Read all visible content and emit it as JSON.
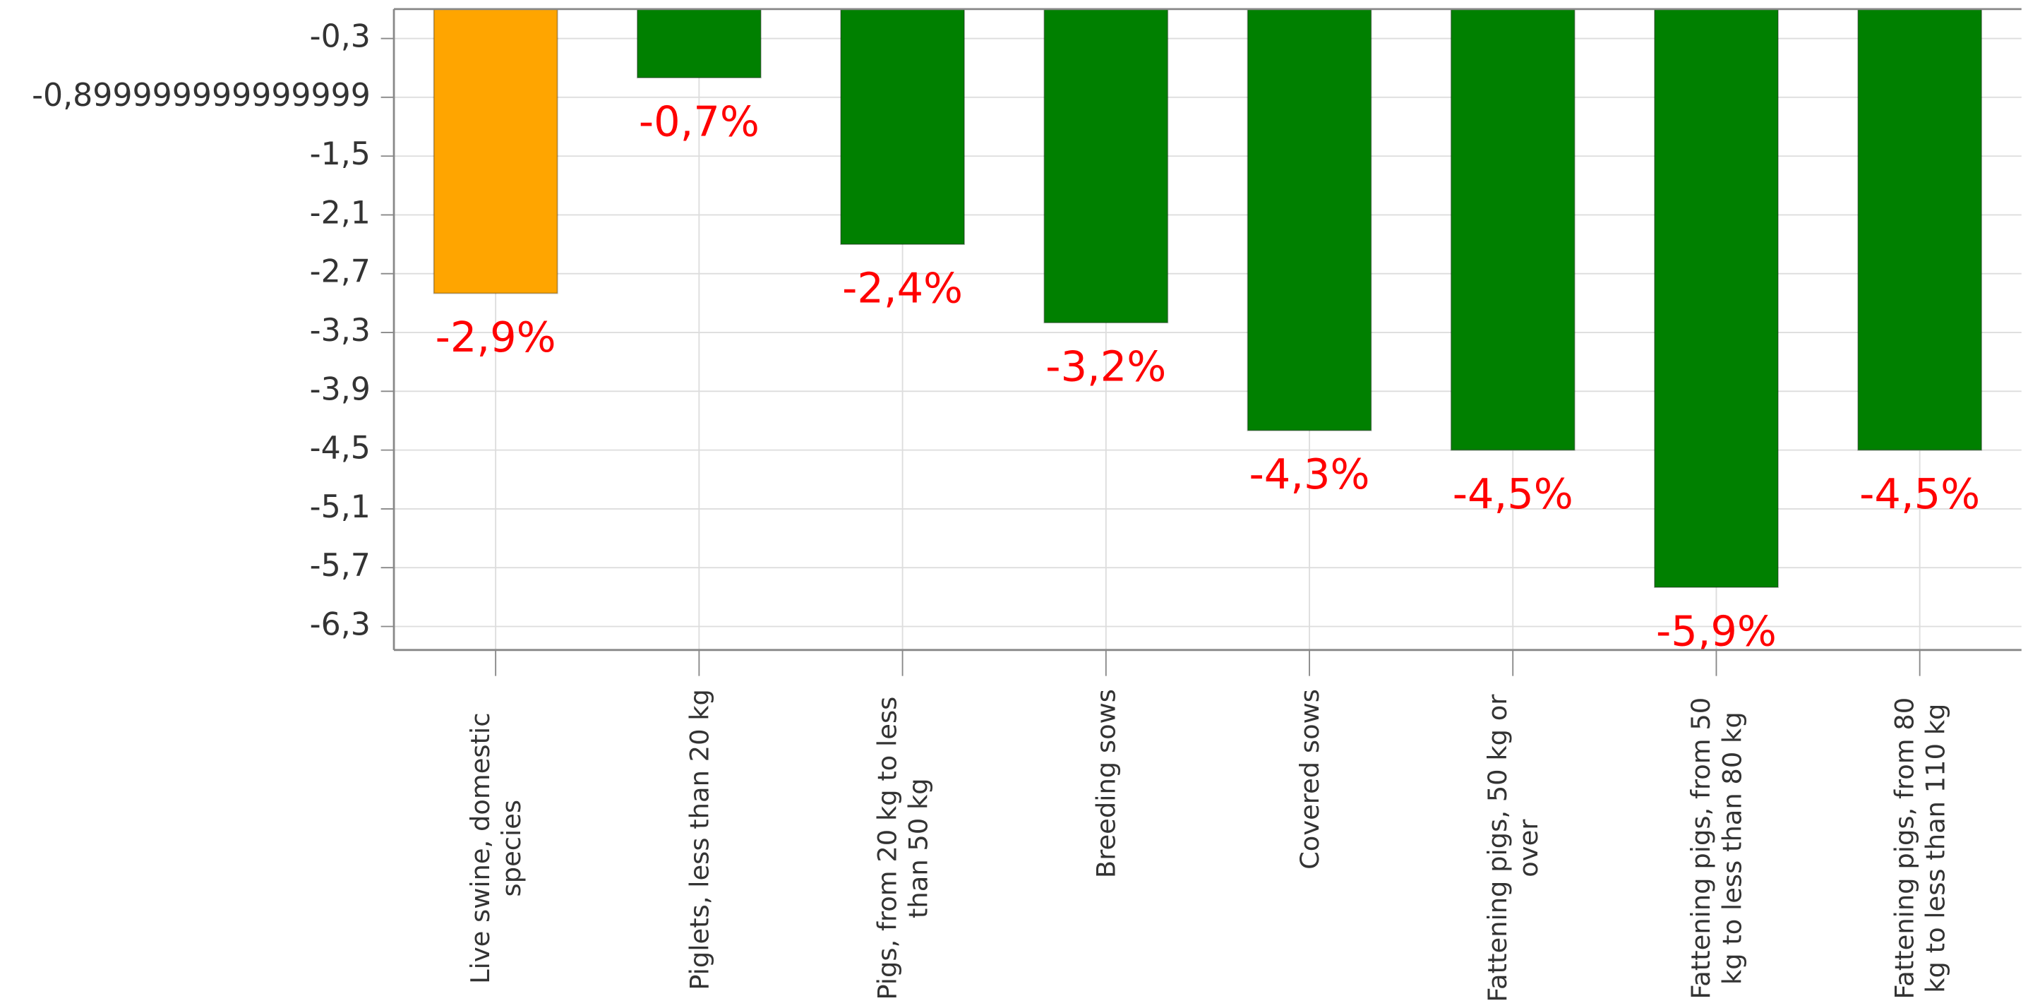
{
  "chart_data": {
    "type": "bar",
    "categories": [
      "Live swine, domestic species",
      "Piglets, less than 20 kg",
      "Pigs, from 20 kg to less than 50 kg",
      "Breeding sows",
      "Covered sows",
      "Fattening pigs, 50 kg or over",
      "Fattening pigs, from 50 kg to less than 80 kg",
      "Fattening pigs, from 80 kg to less than 110 kg"
    ],
    "values": [
      -2.9,
      -0.7,
      -2.4,
      -3.2,
      -4.3,
      -4.5,
      -5.9,
      -4.5
    ],
    "value_labels": [
      "-2,9%",
      "-0,7%",
      "-2,4%",
      "-3,2%",
      "-4,3%",
      "-4,5%",
      "-5,9%",
      "-4,5%"
    ],
    "colors": [
      "#ffa500",
      "#008000",
      "#008000",
      "#008000",
      "#008000",
      "#008000",
      "#008000",
      "#008000"
    ],
    "ylim": [
      -6.54,
      0
    ],
    "yticks": [
      {
        "value": -0.3,
        "label": "-0,3"
      },
      {
        "value": -0.9,
        "label": "-0,899999999999999"
      },
      {
        "value": -1.5,
        "label": "-1,5"
      },
      {
        "value": -2.1,
        "label": "-2,1"
      },
      {
        "value": -2.7,
        "label": "-2,7"
      },
      {
        "value": -3.3,
        "label": "-3,3"
      },
      {
        "value": -3.9,
        "label": "-3,9"
      },
      {
        "value": -4.5,
        "label": "-4,5"
      },
      {
        "value": -5.1,
        "label": "-5,1"
      },
      {
        "value": -5.7,
        "label": "-5,7"
      },
      {
        "value": -6.3,
        "label": "-6,3"
      }
    ],
    "grid": true
  }
}
